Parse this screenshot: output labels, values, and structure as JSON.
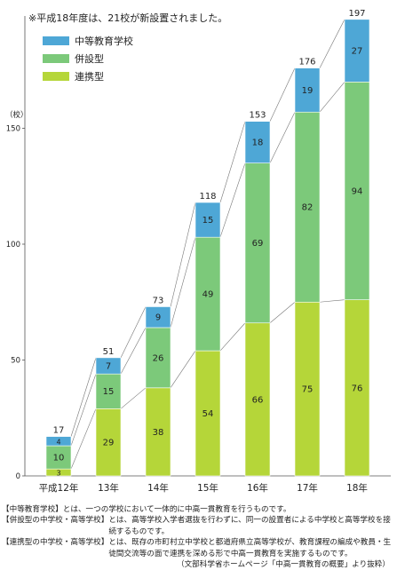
{
  "chart_data": {
    "type": "bar",
    "stacked": true,
    "annotation": "※平成18年度は、21校が新設置されました。",
    "ylabel": "（校）",
    "ylim": [
      0,
      200
    ],
    "yticks": [
      0,
      50,
      100,
      150
    ],
    "categories": [
      "平成12年",
      "13年",
      "14年",
      "15年",
      "16年",
      "17年",
      "18年"
    ],
    "series": [
      {
        "name": "連携型",
        "color": "#b5d639",
        "values": [
          3,
          29,
          38,
          54,
          66,
          75,
          76
        ]
      },
      {
        "name": "併設型",
        "color": "#7cc97a",
        "values": [
          10,
          15,
          26,
          49,
          69,
          82,
          94
        ]
      },
      {
        "name": "中等教育学校",
        "color": "#4ea7d6",
        "values": [
          4,
          7,
          9,
          15,
          18,
          19,
          27
        ]
      }
    ],
    "totals": [
      17,
      51,
      73,
      118,
      153,
      176,
      197
    ],
    "legend_order": [
      "中等教育学校",
      "併設型",
      "連携型"
    ],
    "legend_position": "top-left",
    "grid": false
  },
  "notes": [
    {
      "head": "【中等教育学校】",
      "body": "とは、一つの学校において一体的に中高一貫教育を行うものです。"
    },
    {
      "head": "【併設型の中学校・高等学校】",
      "body": "とは、高等学校入学者選抜を行わずに、同一の設置者による中学校と高等学校を接続するものです。"
    },
    {
      "head": "【連携型の中学校・高等学校】",
      "body": "とは、既存の市町村立中学校と都道府県立高等学校が、教育課程の編成や教員・生徒間交流等の面で連携を深める形で中高一貫教育を実施するものです。"
    }
  ],
  "source": "（文部科学省ホームページ「中高一貫教育の概要」より抜粋）"
}
